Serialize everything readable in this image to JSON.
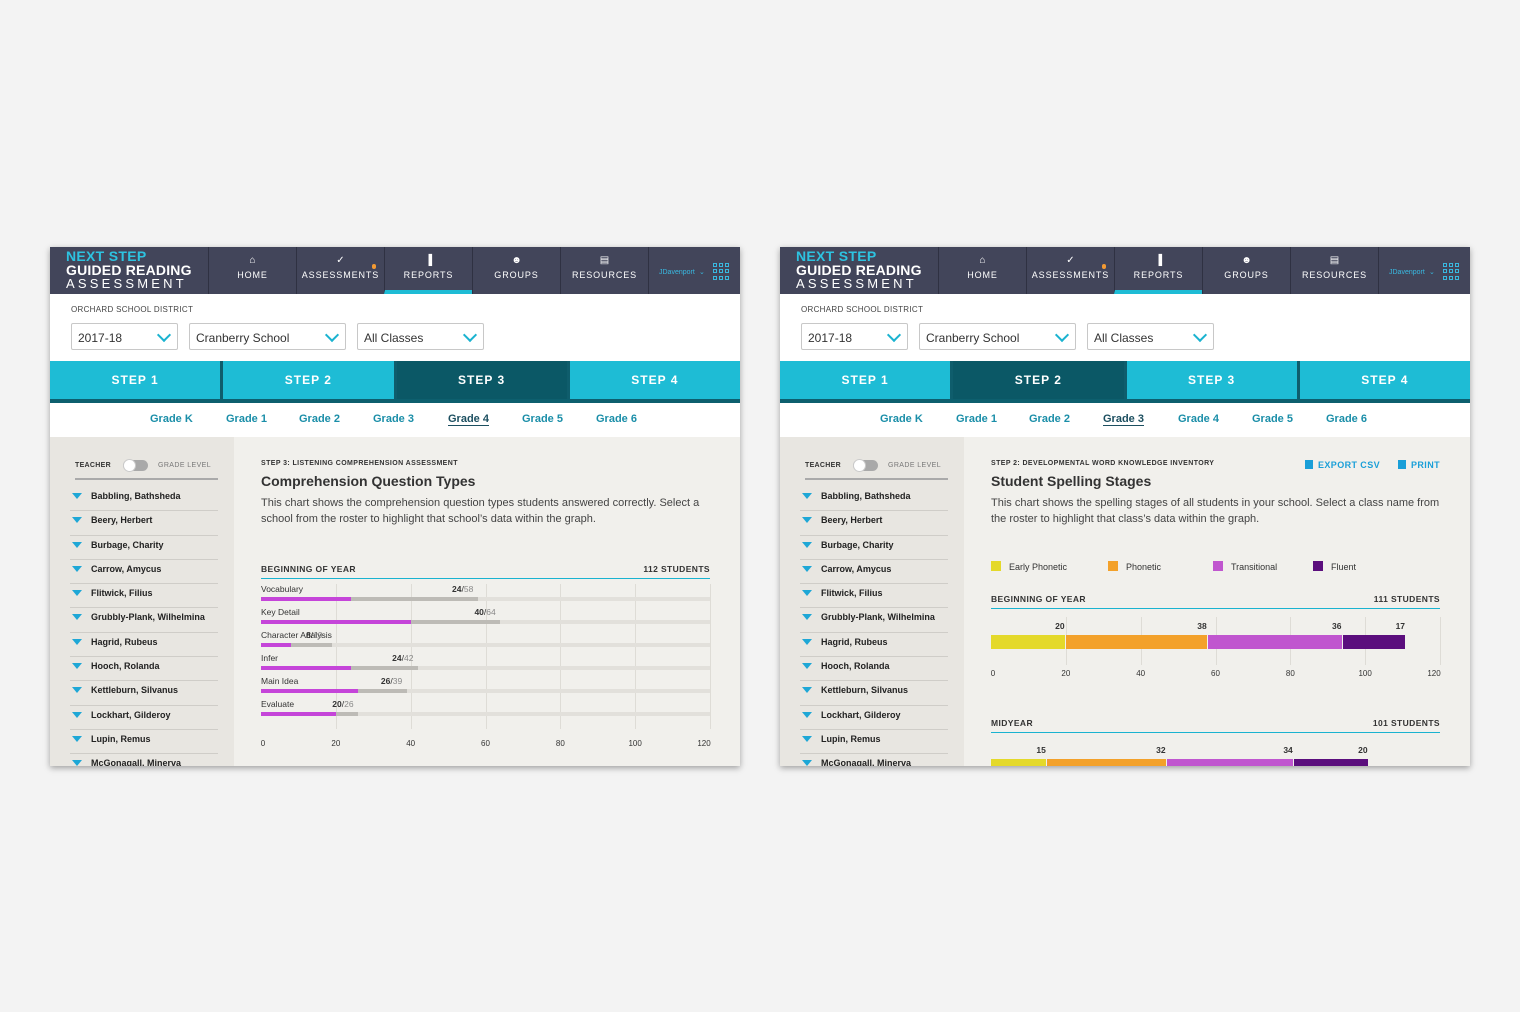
{
  "app": {
    "logo": {
      "line1": "NEXT STEP",
      "line2": "GUIDED READING",
      "line3": "ASSESSMENT"
    },
    "nav": [
      {
        "label": "HOME",
        "icon": "home-icon",
        "glyph": "⌂"
      },
      {
        "label": "ASSESSMENTS",
        "icon": "check-icon",
        "glyph": "✓"
      },
      {
        "label": "REPORTS",
        "icon": "bar-chart-icon",
        "glyph": "▐"
      },
      {
        "label": "GROUPS",
        "icon": "groups-icon",
        "glyph": "☻"
      },
      {
        "label": "RESOURCES",
        "icon": "document-icon",
        "glyph": "▤"
      }
    ],
    "active_nav": "REPORTS",
    "user": "JDavenport",
    "district": "ORCHARD SCHOOL DISTRICT",
    "filters": {
      "year": "2017-18",
      "school": "Cranberry School",
      "class": "All Classes"
    },
    "steps": [
      "STEP 1",
      "STEP 2",
      "STEP 3",
      "STEP 4"
    ],
    "grades": [
      "Grade K",
      "Grade 1",
      "Grade 2",
      "Grade 3",
      "Grade 4",
      "Grade 5",
      "Grade 6"
    ],
    "toggle": {
      "left": "TEACHER",
      "right": "GRADE LEVEL"
    },
    "roster": [
      "Babbling, Bathsheda",
      "Beery, Herbert",
      "Burbage, Charity",
      "Carrow, Amycus",
      "Flitwick, Filius",
      "Grubbly-Plank, Wilhelmina",
      "Hagrid, Rubeus",
      "Hooch, Rolanda",
      "Kettleburn, Silvanus",
      "Lockhart, Gilderoy",
      "Lupin, Remus",
      "McGonagall, Minerva"
    ]
  },
  "left_screen": {
    "active_step": 2,
    "active_grade": 4,
    "eyebrow": "STEP 3: LISTENING COMPREHENSION ASSESSMENT",
    "title": "Comprehension Question Types",
    "description": "This chart shows the comprehension question types students answered correctly. Select a school from the roster to highlight that school’s data within the graph.",
    "section": {
      "label": "BEGINNING OF YEAR",
      "count": "112 STUDENTS"
    }
  },
  "right_screen": {
    "active_step": 1,
    "active_grade": 3,
    "eyebrow": "STEP 2: DEVELOPMENTAL WORD KNOWLEDGE INVENTORY",
    "title": "Student Spelling Stages",
    "description": "This chart shows the spelling stages of all students in your school. Select a class name from the roster to highlight that class’s data within the graph.",
    "export_label": "EXPORT CSV",
    "print_label": "PRINT",
    "section1": {
      "label": "BEGINNING OF YEAR",
      "count": "111 STUDENTS"
    },
    "section2": {
      "label": "MIDYEAR",
      "count": "101 STUDENTS"
    }
  },
  "chart_data": [
    {
      "type": "bar",
      "title": "Comprehension Question Types",
      "categories": [
        "Vocabulary",
        "Key Detail",
        "Character Analysis",
        "Infer",
        "Main Idea",
        "Evaluate"
      ],
      "series": [
        {
          "values": [
            24,
            40,
            8,
            24,
            26,
            20
          ]
        },
        {
          "values": [
            58,
            64,
            19,
            42,
            39,
            26
          ]
        }
      ],
      "x_ticks": [
        0,
        20,
        40,
        60,
        80,
        100,
        120
      ],
      "xlim": [
        0,
        120
      ],
      "colors": {
        "correct": "#c545d9",
        "total": "#bdbbb6"
      }
    },
    {
      "type": "bar",
      "title": "Student Spelling Stages",
      "stacked": true,
      "legend": [
        "Early Phonetic",
        "Phonetic",
        "Transitional",
        "Fluent"
      ],
      "colors": [
        "#e4d92a",
        "#f3a12a",
        "#c056cf",
        "#5b0e7d"
      ],
      "categories": [
        "BEGINNING OF YEAR",
        "MIDYEAR"
      ],
      "series": [
        {
          "name": "Early Phonetic",
          "values": [
            20,
            15
          ]
        },
        {
          "name": "Phonetic",
          "values": [
            38,
            32
          ]
        },
        {
          "name": "Transitional",
          "values": [
            36,
            34
          ]
        },
        {
          "name": "Fluent",
          "values": [
            17,
            20
          ]
        }
      ],
      "x_ticks": [
        0,
        20,
        40,
        60,
        80,
        100,
        120
      ],
      "xlim": [
        0,
        120
      ]
    }
  ]
}
